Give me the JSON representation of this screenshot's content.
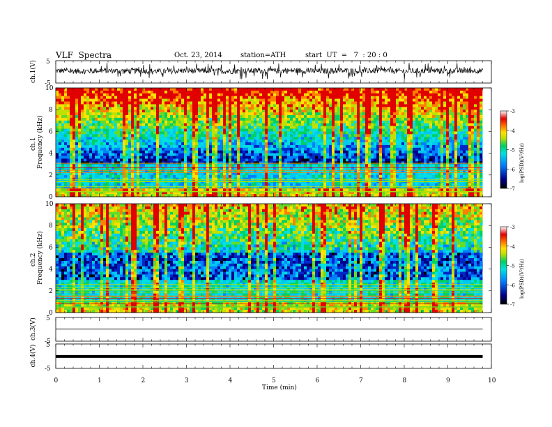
{
  "header": {
    "title": "VLF  Spectra",
    "date": "Oct. 23, 2014",
    "station": "station=ATH",
    "start": "start  UT  =   7  : 20 : 0"
  },
  "chart_data": [
    {
      "type": "line",
      "panel": "ch1-waveform",
      "ylabel": "ch.1(V)",
      "yticks": [
        "5",
        "-5"
      ],
      "ylim": [
        -5,
        5
      ],
      "x": [
        0,
        0.5,
        1,
        1.5,
        2,
        2.5,
        3,
        3.5,
        4,
        4.5,
        5,
        5.5,
        6,
        6.5,
        7,
        7.5,
        8,
        8.5,
        9,
        9.5,
        9.8
      ],
      "y": [
        0.5,
        0.3,
        0.6,
        0.4,
        0.5,
        0.2,
        0.6,
        0.4,
        0.3,
        0.5,
        0.4,
        0.6,
        0.3,
        0.5,
        0.4,
        0.6,
        0.3,
        0.5,
        0.4,
        0.6,
        0.5
      ],
      "spread": 2.5
    },
    {
      "type": "heatmap",
      "panel": "ch1-spectrogram",
      "ylabel": "ch.1\nFrequency (kHz)",
      "ylim": [
        0,
        10
      ],
      "yticks": [
        "10",
        "8",
        "6",
        "4",
        "2",
        "0"
      ],
      "colorbar": {
        "label": "log(PSD)(V²/Hz)",
        "range": [
          -7,
          -3
        ],
        "ticks": [
          "-3",
          "-4",
          "-5",
          "-6",
          "-7"
        ]
      }
    },
    {
      "type": "heatmap",
      "panel": "ch2-spectrogram",
      "ylabel": "ch.2\nFrequency (kHz)",
      "ylim": [
        0,
        10
      ],
      "yticks": [
        "10",
        "8",
        "6",
        "4",
        "2",
        "0"
      ],
      "colorbar": {
        "label": "log(PSD)(V²/Hz)",
        "range": [
          -7,
          -3
        ],
        "ticks": [
          "-3",
          "-4",
          "-5",
          "-6",
          "-7"
        ]
      }
    },
    {
      "type": "line",
      "panel": "ch3-waveform",
      "ylabel": "ch.3(V)",
      "yticks": [
        "5",
        "-5"
      ],
      "ylim": [
        -5,
        5
      ],
      "x": [
        0,
        9.8
      ],
      "y": [
        0.1,
        0.1
      ]
    },
    {
      "type": "line",
      "panel": "ch4-waveform",
      "ylabel": "ch.4(V)",
      "yticks": [
        "5",
        "-5"
      ],
      "ylim": [
        -5,
        5
      ],
      "x": [
        0,
        9.8
      ],
      "y": [
        -0.1,
        -0.1
      ]
    }
  ],
  "x_axis": {
    "label": "Time  (min)",
    "ticks": [
      "0",
      "1",
      "2",
      "3",
      "4",
      "5",
      "6",
      "7",
      "8",
      "9",
      "10"
    ],
    "range": [
      0,
      10
    ]
  }
}
